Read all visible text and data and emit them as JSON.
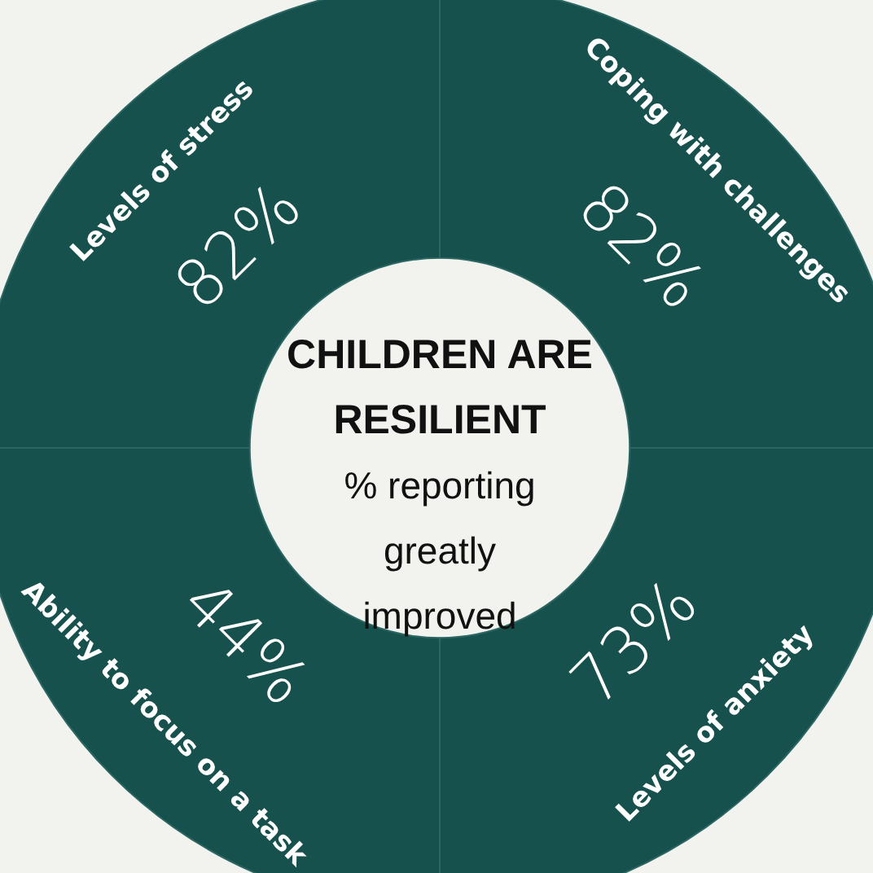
{
  "chart_data": {
    "type": "other",
    "title": "CHILDREN ARE RESILIENT",
    "subtitle": "% reporting greatly improved",
    "categories": [
      "Levels of stress",
      "Coping with challenges",
      "Levels of anxiety",
      "Ability to focus on a task"
    ],
    "values": [
      82,
      82,
      73,
      44
    ],
    "value_labels": [
      "82%",
      "82%",
      "73%",
      "44%"
    ],
    "colors": [
      "#17514e",
      "#17514e",
      "#17514e",
      "#17514e"
    ]
  }
}
